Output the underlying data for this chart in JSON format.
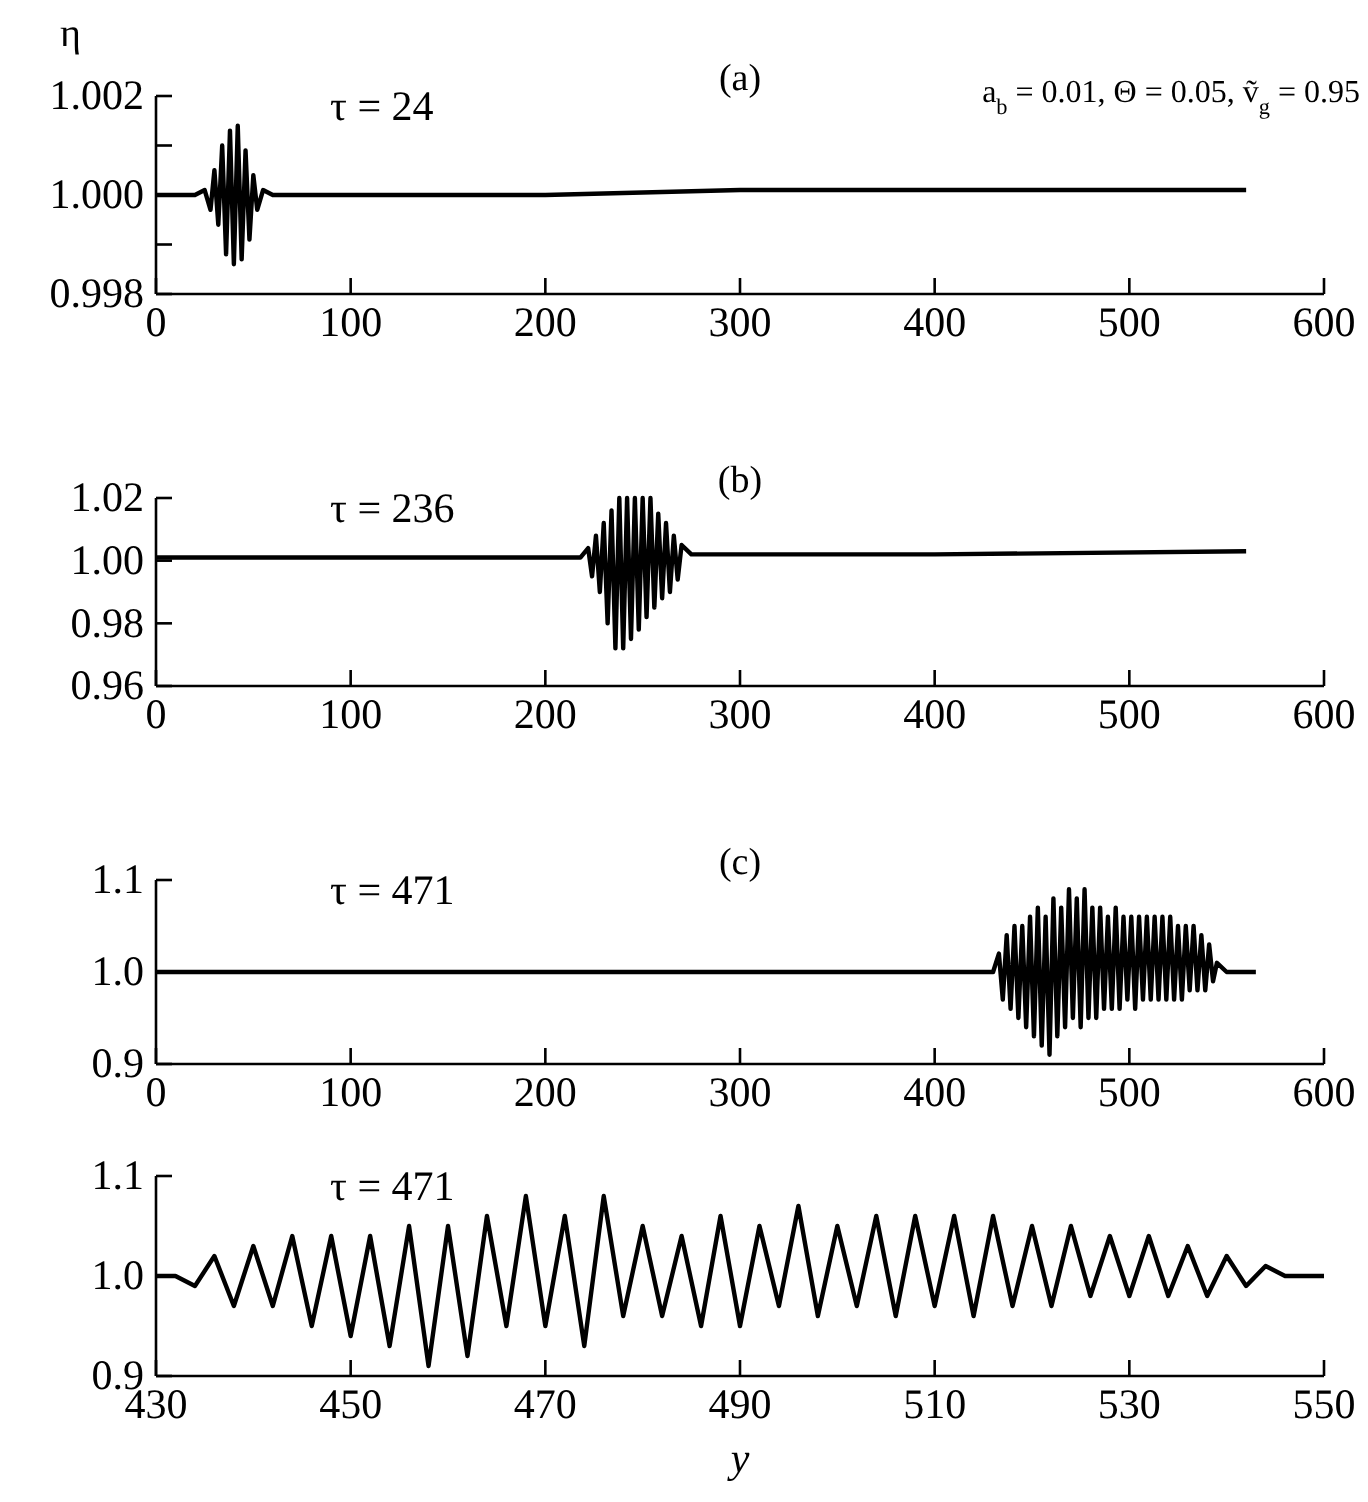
{
  "chart_data": [
    {
      "type": "line",
      "title": "(a)",
      "ylabel": "η",
      "annotations": [
        "τ = 24",
        "a$_{b}$ = 0.01, Θ = 0.05, ṽ$_{g}$ = 0.95"
      ],
      "xlim": [
        0,
        600
      ],
      "xticks": [
        0,
        100,
        200,
        300,
        400,
        500,
        600
      ],
      "ylim": [
        0.998,
        1.002
      ],
      "yticks": [
        {
          "value": 0.998,
          "label": "0.998"
        },
        {
          "value": 0.999,
          "label": null
        },
        {
          "value": 1,
          "label": "1.000"
        },
        {
          "value": 1.001,
          "label": null
        },
        {
          "value": 1.002,
          "label": "1.002"
        }
      ],
      "x": [
        0,
        20,
        25,
        28,
        30,
        32,
        34,
        36,
        38,
        40,
        42,
        44,
        46,
        48,
        50,
        52,
        55,
        60,
        100,
        200,
        300,
        400,
        500,
        560
      ],
      "series": [
        {
          "color": "#000000",
          "values": [
            1.0,
            1.0,
            1.0001,
            0.9997,
            1.0005,
            0.9994,
            1.001,
            0.9988,
            1.0013,
            0.9986,
            1.0014,
            0.9987,
            1.0009,
            0.9991,
            1.0004,
            0.9997,
            1.0001,
            1.0,
            1.0,
            1.0,
            1.0001,
            1.0001,
            1.0001,
            1.0001
          ]
        }
      ]
    },
    {
      "type": "line",
      "title": "(b)",
      "annotations": [
        "τ = 236"
      ],
      "xlim": [
        0,
        600
      ],
      "xticks": [
        0,
        100,
        200,
        300,
        400,
        500,
        600
      ],
      "ylim": [
        0.96,
        1.02
      ],
      "yticks": [
        {
          "value": 0.96,
          "label": "0.96"
        },
        {
          "value": 0.98,
          "label": "0.98"
        },
        {
          "value": 1,
          "label": "1.00"
        },
        {
          "value": 1.02,
          "label": "1.02"
        }
      ],
      "x": [
        0,
        100,
        200,
        218,
        222,
        224,
        226,
        228,
        230,
        232,
        234,
        236,
        238,
        240,
        242,
        244,
        246,
        248,
        250,
        252,
        254,
        256,
        258,
        260,
        262,
        264,
        266,
        268,
        270,
        275,
        280,
        400,
        560
      ],
      "series": [
        {
          "color": "#000000",
          "values": [
            1.001,
            1.001,
            1.001,
            1.001,
            1.004,
            0.995,
            1.008,
            0.99,
            1.012,
            0.98,
            1.016,
            0.972,
            1.02,
            0.972,
            1.02,
            0.975,
            1.02,
            0.978,
            1.02,
            0.982,
            1.02,
            0.985,
            1.015,
            0.988,
            1.012,
            0.99,
            1.008,
            0.994,
            1.005,
            1.002,
            1.002,
            1.002,
            1.003
          ]
        }
      ]
    },
    {
      "type": "line",
      "title": "(c)",
      "annotations": [
        "τ = 471"
      ],
      "xlim": [
        0,
        600
      ],
      "xticks": [
        0,
        100,
        200,
        300,
        400,
        500,
        600
      ],
      "ylim": [
        0.9,
        1.1
      ],
      "yticks": [
        {
          "value": 0.9,
          "label": "0.9"
        },
        {
          "value": 1,
          "label": "1.0"
        },
        {
          "value": 1.1,
          "label": "1.1"
        }
      ],
      "x": [
        0,
        200,
        430,
        433,
        435,
        437,
        439,
        441,
        443,
        445,
        447,
        449,
        451,
        453,
        455,
        457,
        459,
        461,
        463,
        465,
        467,
        469,
        471,
        473,
        475,
        477,
        479,
        481,
        483,
        485,
        487,
        489,
        491,
        493,
        495,
        497,
        499,
        501,
        503,
        505,
        507,
        509,
        511,
        513,
        515,
        517,
        519,
        521,
        523,
        525,
        527,
        529,
        531,
        533,
        535,
        537,
        539,
        541,
        543,
        545,
        550,
        565
      ],
      "series": [
        {
          "color": "#000000",
          "values": [
            1.0,
            1.0,
            1.0,
            1.02,
            0.97,
            1.04,
            0.96,
            1.05,
            0.95,
            1.05,
            0.94,
            1.06,
            0.93,
            1.07,
            0.92,
            1.06,
            0.91,
            1.08,
            0.93,
            1.07,
            0.94,
            1.09,
            0.95,
            1.08,
            0.94,
            1.09,
            0.95,
            1.07,
            0.95,
            1.07,
            0.96,
            1.06,
            0.96,
            1.07,
            0.96,
            1.06,
            0.97,
            1.06,
            0.96,
            1.06,
            0.97,
            1.06,
            0.97,
            1.06,
            0.97,
            1.06,
            0.97,
            1.06,
            0.97,
            1.05,
            0.97,
            1.05,
            0.98,
            1.05,
            0.98,
            1.04,
            0.98,
            1.03,
            0.99,
            1.01,
            1.0,
            1.0
          ]
        }
      ]
    },
    {
      "type": "line",
      "xlabel": "y",
      "annotations": [
        "τ = 471"
      ],
      "xlim": [
        430,
        550
      ],
      "xticks": [
        430,
        450,
        470,
        490,
        510,
        530,
        550
      ],
      "ylim": [
        0.9,
        1.1
      ],
      "yticks": [
        {
          "value": 0.9,
          "label": "0.9"
        },
        {
          "value": 1,
          "label": "1.0"
        },
        {
          "value": 1.1,
          "label": "1.1"
        }
      ],
      "x": [
        430,
        432,
        434,
        436,
        438,
        440,
        442,
        444,
        446,
        448,
        450,
        452,
        454,
        456,
        458,
        460,
        462,
        464,
        466,
        468,
        470,
        472,
        474,
        476,
        478,
        480,
        482,
        484,
        486,
        488,
        490,
        492,
        494,
        496,
        498,
        500,
        502,
        504,
        506,
        508,
        510,
        512,
        514,
        516,
        518,
        520,
        522,
        524,
        526,
        528,
        530,
        532,
        534,
        536,
        538,
        540,
        542,
        544,
        546,
        548,
        550
      ],
      "series": [
        {
          "color": "#000000",
          "values": [
            1.0,
            1.0,
            0.99,
            1.02,
            0.97,
            1.03,
            0.97,
            1.04,
            0.95,
            1.04,
            0.94,
            1.04,
            0.93,
            1.05,
            0.91,
            1.05,
            0.92,
            1.06,
            0.95,
            1.08,
            0.95,
            1.06,
            0.93,
            1.08,
            0.96,
            1.05,
            0.96,
            1.04,
            0.95,
            1.06,
            0.95,
            1.05,
            0.97,
            1.07,
            0.96,
            1.05,
            0.97,
            1.06,
            0.96,
            1.06,
            0.97,
            1.06,
            0.96,
            1.06,
            0.97,
            1.05,
            0.97,
            1.05,
            0.98,
            1.04,
            0.98,
            1.04,
            0.98,
            1.03,
            0.98,
            1.02,
            0.99,
            1.01,
            1.0,
            1.0,
            1.0
          ]
        }
      ]
    }
  ]
}
